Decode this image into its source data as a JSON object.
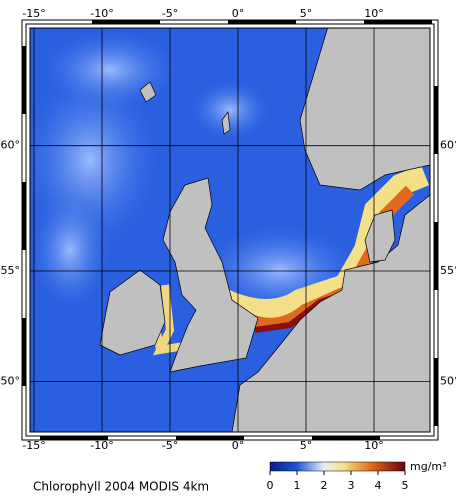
{
  "map": {
    "caption": "Chlorophyll 2004 MODIS 4km",
    "lon_ticks": [
      {
        "value": -15,
        "label": "-15°"
      },
      {
        "value": -10,
        "label": "-10°"
      },
      {
        "value": -5,
        "label": "-5°"
      },
      {
        "value": 0,
        "label": "0°"
      },
      {
        "value": 5,
        "label": "5°"
      },
      {
        "value": 10,
        "label": "10°"
      }
    ],
    "lat_ticks": [
      {
        "value": 50,
        "label": "50°"
      },
      {
        "value": 55,
        "label": "55°"
      },
      {
        "value": 60,
        "label": "60°"
      }
    ],
    "colorbar": {
      "unit": "mg/m³",
      "range": [
        0,
        5
      ],
      "ticks": [
        0,
        1,
        2,
        3,
        4,
        5
      ]
    }
  }
}
